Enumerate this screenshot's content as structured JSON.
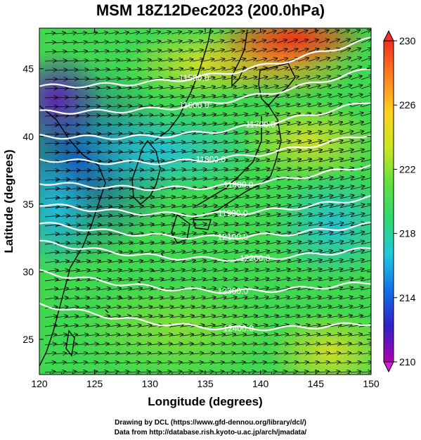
{
  "title": "MSM 18Z12Dec2023 (200.0hPa)",
  "map": {
    "lon_range": [
      120,
      150
    ],
    "lat_range": [
      22.4,
      48
    ],
    "x_ticks": [
      "120",
      "125",
      "130",
      "135",
      "140",
      "145",
      "150"
    ],
    "y_ticks": [
      "25",
      "30",
      "35",
      "40",
      "45"
    ],
    "xlabel": "Longitude (degrees)",
    "ylabel": "Latitude  (degrees)",
    "contour_color": "#ffffff",
    "contours": [
      {
        "label": "11500.0",
        "lat_west": 43.7,
        "lat_east": 47.2,
        "label_lon": 134.0
      },
      {
        "label": "11600.0",
        "lat_west": 41.8,
        "lat_east": 45.0,
        "label_lon": 134.0
      },
      {
        "label": "11700.0",
        "lat_west": 40.0,
        "lat_east": 42.6,
        "label_lon": 140.0
      },
      {
        "label": "11800.0",
        "lat_west": 38.3,
        "lat_east": 40.2,
        "label_lon": 135.5
      },
      {
        "label": "11900.0",
        "lat_west": 36.6,
        "lat_east": 37.9,
        "label_lon": 138.0
      },
      {
        "label": "11990.0",
        "lat_west": 35.0,
        "lat_east": 35.5,
        "label_lon": 137.5
      },
      {
        "label": "12100.0",
        "lat_west": 33.6,
        "lat_east": 33.5,
        "label_lon": 137.5
      },
      {
        "label": "12200.0",
        "lat_west": 32.2,
        "lat_east": 31.7,
        "label_lon": 139.5
      },
      {
        "label": "12300.0",
        "lat_west": 30.0,
        "lat_east": 29.2,
        "label_lon": 137.5
      },
      {
        "label": "12400.0",
        "lat_west": 27.6,
        "lat_east": 26.2,
        "label_lon": 138.0
      }
    ]
  },
  "colorbar": {
    "min": 210,
    "max": 230,
    "labels": [
      "230",
      "226",
      "222",
      "218",
      "214",
      "210"
    ],
    "colors": [
      "#b000b0",
      "#3020c8",
      "#1070e8",
      "#20c8e0",
      "#30d870",
      "#60e040",
      "#c8e820",
      "#ffd020",
      "#ff8020",
      "#f03020"
    ]
  },
  "credits": {
    "line1": "Drawing by DCL (https://www.gfd-dennou.org/library/dcl/)",
    "line2": "Data from http://database.rish.kyoto-u.ac.jp/arch/jmadata/"
  }
}
